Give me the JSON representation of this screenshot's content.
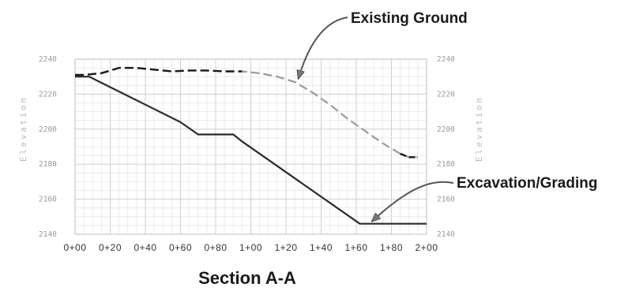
{
  "chart_data": {
    "type": "line",
    "title": "Section A-A",
    "xlabel": "",
    "ylabel": "Elevation",
    "y2label": "Elevation",
    "xlim": [
      0,
      200
    ],
    "ylim": [
      2140,
      2240
    ],
    "x_ticks": [
      "0+00",
      "0+20",
      "0+40",
      "0+60",
      "0+80",
      "1+00",
      "1+20",
      "1+40",
      "1+60",
      "1+80",
      "2+00"
    ],
    "y_ticks": [
      2140,
      2160,
      2180,
      2200,
      2220,
      2240
    ],
    "grid": true,
    "series": [
      {
        "name": "Existing Ground",
        "style": "dashed",
        "color": "#1a1a1a",
        "faded_color": "#9a9a9a",
        "x": [
          0,
          5,
          15,
          25,
          35,
          45,
          55,
          65,
          75,
          85,
          95,
          105,
          115,
          125,
          135,
          145,
          155,
          165,
          175,
          185,
          190,
          195
        ],
        "y": [
          2231,
          2231,
          2232,
          2235,
          2235,
          2234,
          2233,
          2233.5,
          2233.5,
          2233,
          2233,
          2232,
          2230,
          2227,
          2221,
          2214,
          2206,
          2199,
          2192,
          2186,
          2184,
          2184
        ]
      },
      {
        "name": "Excavation/Grading",
        "style": "solid",
        "color": "#2a2a2a",
        "x": [
          0,
          8,
          20,
          40,
          60,
          70,
          90,
          95,
          162,
          200
        ],
        "y": [
          2230,
          2230,
          2224,
          2214,
          2204,
          2197,
          2197,
          2193,
          2146,
          2146
        ]
      }
    ],
    "annotations": [
      {
        "text": "Existing Ground",
        "target_x": 127,
        "target_y": 2227
      },
      {
        "text": "Excavation/Grading",
        "target_x": 168,
        "target_y": 2146
      }
    ]
  }
}
